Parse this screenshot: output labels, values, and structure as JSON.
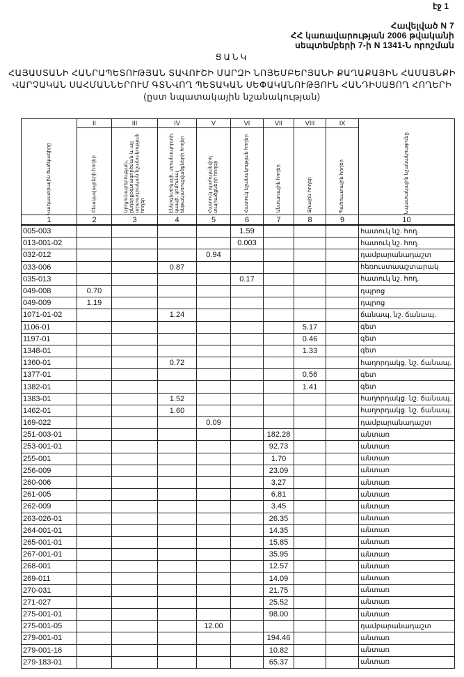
{
  "page_number": "էջ 1",
  "annex": [
    "Հավելված N 7",
    "ՀՀ կառավարության 2006 թվականի",
    "սեպտեմբերի 7-ի  N 1341-Ն որոշման"
  ],
  "title": "ՑԱՆԿ",
  "subtitle": [
    "ՀԱՅԱՍՏԱՆԻ ՀԱՆՐԱՊԵՏՈՒԹՅԱՆ ՏԱՎՈՒՇԻ ՄԱՐԶԻ ՆՈՅԵՄԲԵՐՅԱՆԻ ՔԱՂԱՔԱՅԻՆ ՀԱՄԱՅՆՔԻ",
    "ՎԱՐՉԱԿԱՆ ՍԱՀՄԱՆՆԵՐՈՒՄ  ԳՏՆՎՈՂ  ՊԵՏԱԿԱՆ ՍԵՓԱԿԱՆՈՒԹՅՈՒՆ  ՀԱՆԴԻՍԱՑՈՂ ՀՈՂԵՐԻ",
    "(ըստ նպատակային նշանակության)"
  ],
  "table": {
    "roman": [
      "",
      "II",
      "III",
      "IV",
      "V",
      "VI",
      "VII",
      "VIII",
      "IX",
      ""
    ],
    "headers": [
      "Կադաստրային ծածկագիրը",
      "Բնակավայրերի հողեր",
      "Արդյունաբերության, ընդերքօգտագործման և այլ արտադրական նշանակության հողեր",
      "Էներգետիկայի, տրանսպորտի, կապի, կոմունալ ենթակառուցվածքների հողեր",
      "Հատուկ պահպանվող տարածքների հողեր",
      "Հատուկ նշանակության հողեր",
      "Անտառային հողեր",
      "Ջրային հողեր",
      "Պահուստային հողեր",
      "Նպատակային նշանակությունը"
    ],
    "column_numbers": [
      "1",
      "2",
      "3",
      "4",
      "5",
      "6",
      "7",
      "8",
      "9",
      "10"
    ],
    "rows": [
      [
        "005-003",
        "",
        "",
        "",
        "",
        "1.59",
        "",
        "",
        "",
        "հատուկ նշ. հող."
      ],
      [
        "013-001-02",
        "",
        "",
        "",
        "",
        "0.003",
        "",
        "",
        "",
        "հատուկ նշ. հող."
      ],
      [
        "032-012",
        "",
        "",
        "",
        "0.94",
        "",
        "",
        "",
        "",
        "դամբարանադաշտ"
      ],
      [
        "033-006",
        "",
        "",
        "0.87",
        "",
        "",
        "",
        "",
        "",
        "հեռուստաաշտարակ"
      ],
      [
        "035-013",
        "",
        "",
        "",
        "",
        "0.17",
        "",
        "",
        "",
        "հատուկ նշ. հող."
      ],
      [
        "049-008",
        "0.70",
        "",
        "",
        "",
        "",
        "",
        "",
        "",
        "դպրոց"
      ],
      [
        "049-009",
        "1.19",
        "",
        "",
        "",
        "",
        "",
        "",
        "",
        "դպրոց"
      ],
      [
        "1071-01-02",
        "",
        "",
        "1.24",
        "",
        "",
        "",
        "",
        "",
        "ճանապ. նշ. ճանապ."
      ],
      [
        "1106-01",
        "",
        "",
        "",
        "",
        "",
        "",
        "5.17",
        "",
        "գետ"
      ],
      [
        "1197-01",
        "",
        "",
        "",
        "",
        "",
        "",
        "0.46",
        "",
        "գետ"
      ],
      [
        "1348-01",
        "",
        "",
        "",
        "",
        "",
        "",
        "1.33",
        "",
        "գետ"
      ],
      [
        "1360-01",
        "",
        "",
        "0.72",
        "",
        "",
        "",
        "",
        "",
        "հաղորդակց. նշ. ճանապ."
      ],
      [
        "1377-01",
        "",
        "",
        "",
        "",
        "",
        "",
        "0.56",
        "",
        "գետ"
      ],
      [
        "1382-01",
        "",
        "",
        "",
        "",
        "",
        "",
        "1.41",
        "",
        "գետ"
      ],
      [
        "1383-01",
        "",
        "",
        "1.52",
        "",
        "",
        "",
        "",
        "",
        "հաղորդակց. նշ. ճանապ."
      ],
      [
        "1462-01",
        "",
        "",
        "1.60",
        "",
        "",
        "",
        "",
        "",
        "հաղորդակց. նշ. ճանապ."
      ],
      [
        "169-022",
        "",
        "",
        "",
        "0.09",
        "",
        "",
        "",
        "",
        "դամբարանադաշտ"
      ],
      [
        "251-003-01",
        "",
        "",
        "",
        "",
        "",
        "182.28",
        "",
        "",
        "անտառ"
      ],
      [
        "253-001-01",
        "",
        "",
        "",
        "",
        "",
        "92.73",
        "",
        "",
        "անտառ"
      ],
      [
        "255-001",
        "",
        "",
        "",
        "",
        "",
        "1.70",
        "",
        "",
        "անտառ"
      ],
      [
        "256-009",
        "",
        "",
        "",
        "",
        "",
        "23.09",
        "",
        "",
        "անտառ"
      ],
      [
        "260-006",
        "",
        "",
        "",
        "",
        "",
        "3.27",
        "",
        "",
        "անտառ"
      ],
      [
        "261-005",
        "",
        "",
        "",
        "",
        "",
        "6.81",
        "",
        "",
        "անտառ"
      ],
      [
        "262-009",
        "",
        "",
        "",
        "",
        "",
        "3.45",
        "",
        "",
        "անտառ"
      ],
      [
        "263-026-01",
        "",
        "",
        "",
        "",
        "",
        "26.35",
        "",
        "",
        "անտառ"
      ],
      [
        "264-001-01",
        "",
        "",
        "",
        "",
        "",
        "14.35",
        "",
        "",
        "անտառ"
      ],
      [
        "265-001-01",
        "",
        "",
        "",
        "",
        "",
        "15.85",
        "",
        "",
        "անտառ"
      ],
      [
        "267-001-01",
        "",
        "",
        "",
        "",
        "",
        "35.95",
        "",
        "",
        "անտառ"
      ],
      [
        "268-001",
        "",
        "",
        "",
        "",
        "",
        "12.57",
        "",
        "",
        "անտառ"
      ],
      [
        "269-011",
        "",
        "",
        "",
        "",
        "",
        "14.09",
        "",
        "",
        "անտառ"
      ],
      [
        "270-031",
        "",
        "",
        "",
        "",
        "",
        "21.75",
        "",
        "",
        "անտառ"
      ],
      [
        "271-027",
        "",
        "",
        "",
        "",
        "",
        "25.52",
        "",
        "",
        "անտառ"
      ],
      [
        "275-001-01",
        "",
        "",
        "",
        "",
        "",
        "98.00",
        "",
        "",
        "անտառ"
      ],
      [
        "275-001-05",
        "",
        "",
        "",
        "12.00",
        "",
        "",
        "",
        "",
        "դամբարանադաշտ"
      ],
      [
        "279-001-01",
        "",
        "",
        "",
        "",
        "",
        "194.46",
        "",
        "",
        "անտառ"
      ],
      [
        "279-001-16",
        "",
        "",
        "",
        "",
        "",
        "10.82",
        "",
        "",
        "անտառ"
      ],
      [
        "279-183-01",
        "",
        "",
        "",
        "",
        "",
        "65.37",
        "",
        "",
        "անտառ"
      ]
    ]
  }
}
